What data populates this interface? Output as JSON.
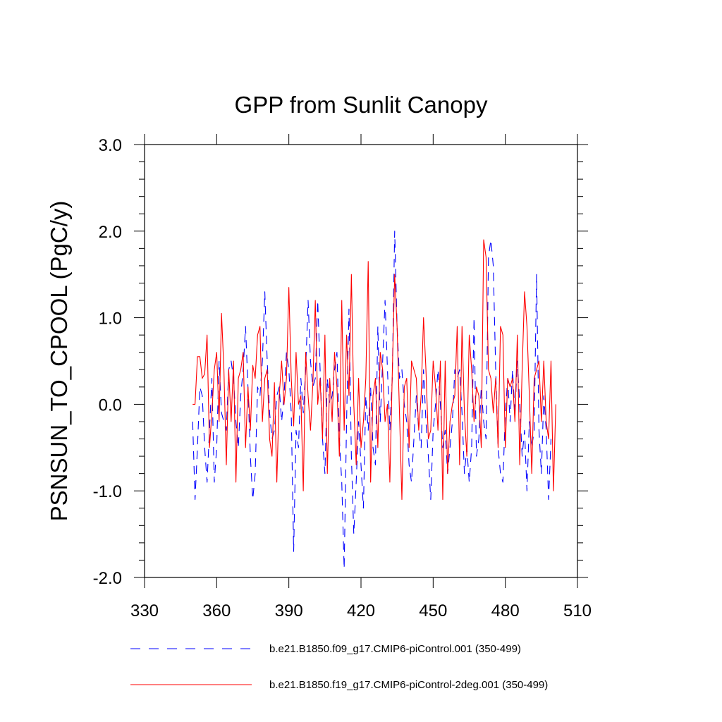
{
  "chart_data": {
    "type": "line",
    "title": "GPP from Sunlit Canopy",
    "ylabel": "PSNSUN_TO_CPOOL  (PgC/y)",
    "xlabel": "",
    "xlim": [
      330,
      510
    ],
    "ylim": [
      -2.0,
      3.0
    ],
    "xticks": [
      330,
      360,
      390,
      420,
      450,
      480,
      510
    ],
    "xtick_labels": [
      "330",
      "360",
      "390",
      "420",
      "450",
      "480",
      "510"
    ],
    "yticks": [
      -2.0,
      -1.0,
      0.0,
      1.0,
      2.0,
      3.0
    ],
    "ytick_labels": [
      "-2.0",
      "-1.0",
      "0.0",
      "1.0",
      "2.0",
      "3.0"
    ],
    "grid": false,
    "legend": "bottom",
    "series": [
      {
        "name": "b.e21.B1850.f09_g17.CMIP6-piControl.001 (350-499)",
        "color": "#0000ff",
        "style": "dashed",
        "x_start": 350,
        "values": [
          -0.2,
          -1.1,
          -0.5,
          0.2,
          0.1,
          -0.5,
          -0.9,
          -0.3,
          0.3,
          -0.9,
          -0.5,
          0.5,
          -0.1,
          -0.2,
          -0.3,
          0.4,
          0.5,
          0.3,
          -0.2,
          -0.5,
          0.1,
          0.4,
          0.9,
          0.2,
          -0.6,
          -1.1,
          -0.8,
          0.2,
          0.1,
          0.5,
          1.3,
          0.5,
          -0.1,
          -0.4,
          -0.3,
          0.1,
          0.2,
          -0.2,
          0.1,
          0.6,
          0.4,
          -0.1,
          -1.7,
          -0.3,
          -0.5,
          0.3,
          -0.1,
          0.4,
          1.2,
          0.5,
          0.2,
          0.3,
          1.2,
          0.4,
          -0.4,
          -0.8,
          0.3,
          0.0,
          0.1,
          0.4,
          0.6,
          -0.4,
          -0.9,
          -1.9,
          -0.2,
          1.1,
          -0.6,
          -1.5,
          -0.9,
          -0.2,
          -0.7,
          -1.2,
          0.1,
          -0.3,
          0.2,
          -0.5,
          -0.7,
          0.9,
          -0.2,
          0.5,
          1.2,
          0.4,
          -0.3,
          0.3,
          2.0,
          0.9,
          0.3,
          0.4,
          0.0,
          -0.2,
          -0.7,
          -0.9,
          -0.4,
          0.1,
          -0.3,
          -0.5,
          0.4,
          -0.2,
          -0.6,
          -1.1,
          -0.3,
          0.0,
          0.4,
          0.0,
          -0.5,
          -0.3,
          -0.8,
          -0.5,
          -0.2,
          0.4,
          0.3,
          0.4,
          -0.1,
          -0.8,
          -0.5,
          -0.9,
          -0.5,
          1.0,
          -0.6,
          -0.4,
          0.2,
          -0.2,
          -0.4,
          1.7,
          1.9,
          1.6,
          0.4,
          -0.5,
          -0.8,
          -0.9,
          -0.1,
          0.3,
          -0.2,
          0.4,
          -0.1,
          0.5,
          0.0,
          -0.6,
          -0.3,
          -1.0,
          -0.2,
          -0.5,
          -0.3,
          1.5,
          -0.3,
          -0.8,
          0.1,
          -0.3,
          -1.1,
          -0.4
        ]
      },
      {
        "name": "b.e21.B1850.f19_g17.CMIP6-piControl-2deg.001 (350-499)",
        "color": "#ff0000",
        "style": "solid",
        "x_start": 350,
        "values": [
          0.0,
          0.0,
          0.55,
          0.55,
          0.3,
          0.35,
          0.8,
          -0.5,
          -0.1,
          0.4,
          0.6,
          -0.2,
          1.05,
          0.4,
          -0.7,
          0.4,
          -0.2,
          0.5,
          -0.9,
          0.3,
          0.4,
          0.6,
          -0.5,
          0.2,
          -0.3,
          0.45,
          0.3,
          0.8,
          0.9,
          -0.2,
          0.3,
          0.4,
          -0.4,
          -0.6,
          0.25,
          -0.9,
          0.1,
          0.5,
          0.0,
          0.3,
          1.35,
          0.3,
          -0.25,
          0.6,
          0.0,
          0.1,
          -1.0,
          0.6,
          0.1,
          -0.3,
          0.25,
          1.2,
          0.0,
          0.3,
          -0.4,
          0.8,
          -0.8,
          0.3,
          -0.2,
          0.6,
          0.2,
          -0.6,
          1.2,
          -0.3,
          0.8,
          0.1,
          1.5,
          0.0,
          -0.7,
          0.3,
          -0.5,
          -0.2,
          0.3,
          1.65,
          -0.9,
          0.1,
          0.3,
          -0.5,
          0.6,
          0.4,
          -0.2,
          0.0,
          -0.9,
          0.35,
          1.5,
          0.9,
          -0.1,
          -1.1,
          0.2,
          0.3,
          -0.5,
          0.5,
          0.4,
          0.3,
          -0.3,
          0.1,
          1.0,
          0.4,
          -0.4,
          -0.3,
          0.5,
          0.2,
          -0.3,
          0.5,
          -1.1,
          0.5,
          -0.8,
          -0.2,
          0.0,
          0.1,
          0.9,
          -0.7,
          0.9,
          -0.1,
          -0.6,
          0.8,
          0.4,
          -0.2,
          0.2,
          0.1,
          -0.5,
          1.9,
          1.7,
          0.4,
          0.3,
          -0.1,
          0.3,
          -0.5,
          0.9,
          0.8,
          -0.5,
          0.3,
          0.2,
          0.3,
          -0.2,
          0.8,
          -0.7,
          0.4,
          1.3,
          0.9,
          0.1,
          -0.8,
          0.3,
          0.4,
          0.5,
          -0.2,
          0.5,
          -0.2,
          -0.4,
          0.5,
          -1.0,
          0.0
        ]
      }
    ]
  }
}
